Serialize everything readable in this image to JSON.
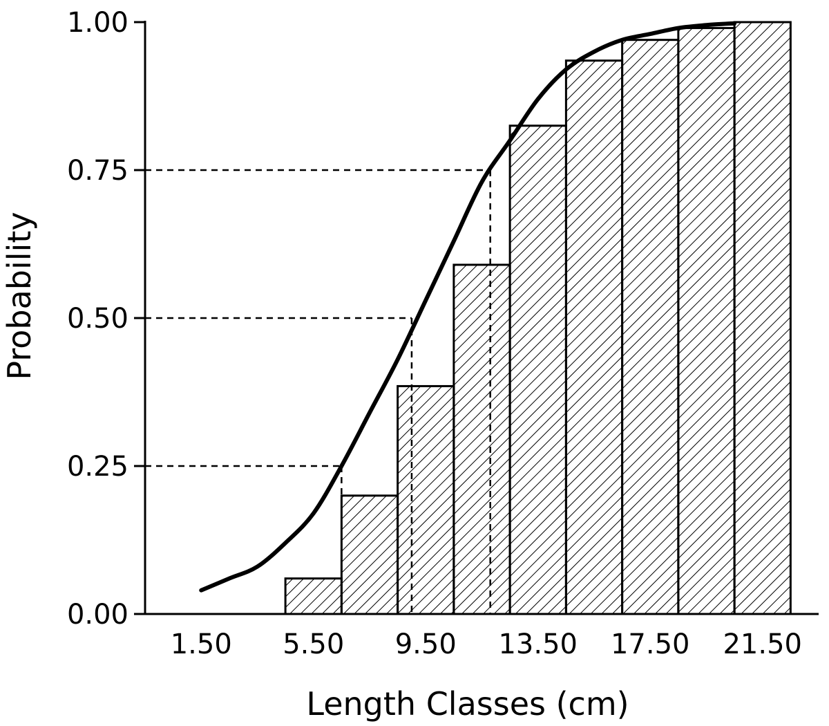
{
  "chart_data": {
    "type": "bar",
    "title": "",
    "xlabel": "Length Classes (cm)",
    "ylabel": "Probability",
    "x_tick_labels": [
      "1.50",
      "5.50",
      "9.50",
      "13.50",
      "17.50",
      "21.50"
    ],
    "y_tick_labels": [
      "0.00",
      "0.25",
      "0.50",
      "0.75",
      "1.00"
    ],
    "ylim": [
      0,
      1
    ],
    "xlim": [
      -0.5,
      23.5
    ],
    "bar_width": 2,
    "bars": [
      {
        "x": 1.5,
        "value": 0.0
      },
      {
        "x": 3.5,
        "value": 0.0
      },
      {
        "x": 5.5,
        "value": 0.06
      },
      {
        "x": 7.5,
        "value": 0.2
      },
      {
        "x": 9.5,
        "value": 0.385
      },
      {
        "x": 11.5,
        "value": 0.59
      },
      {
        "x": 13.5,
        "value": 0.825
      },
      {
        "x": 15.5,
        "value": 0.935
      },
      {
        "x": 17.5,
        "value": 0.97
      },
      {
        "x": 19.5,
        "value": 0.99
      },
      {
        "x": 21.5,
        "value": 1.0
      }
    ],
    "curve": {
      "type": "line",
      "x": [
        1.5,
        2.5,
        3.5,
        4.5,
        5.5,
        6.5,
        7.5,
        8.5,
        9.5,
        10.5,
        11.5,
        12.5,
        13.5,
        14.5,
        15.5,
        16.5,
        17.5,
        18.5,
        19.5,
        20.5
      ],
      "y": [
        0.04,
        0.06,
        0.08,
        0.12,
        0.17,
        0.25,
        0.34,
        0.43,
        0.53,
        0.63,
        0.73,
        0.8,
        0.87,
        0.92,
        0.95,
        0.97,
        0.98,
        0.99,
        0.995,
        0.998
      ]
    },
    "reference_lines": [
      {
        "probability": 0.25,
        "length": 6.5
      },
      {
        "probability": 0.5,
        "length": 9.0
      },
      {
        "probability": 0.75,
        "length": 11.8
      }
    ],
    "bar_fill": "diagonal-hatch",
    "colors": {
      "ink": "#000000",
      "background": "#ffffff"
    },
    "grid": false,
    "legend": "none"
  }
}
